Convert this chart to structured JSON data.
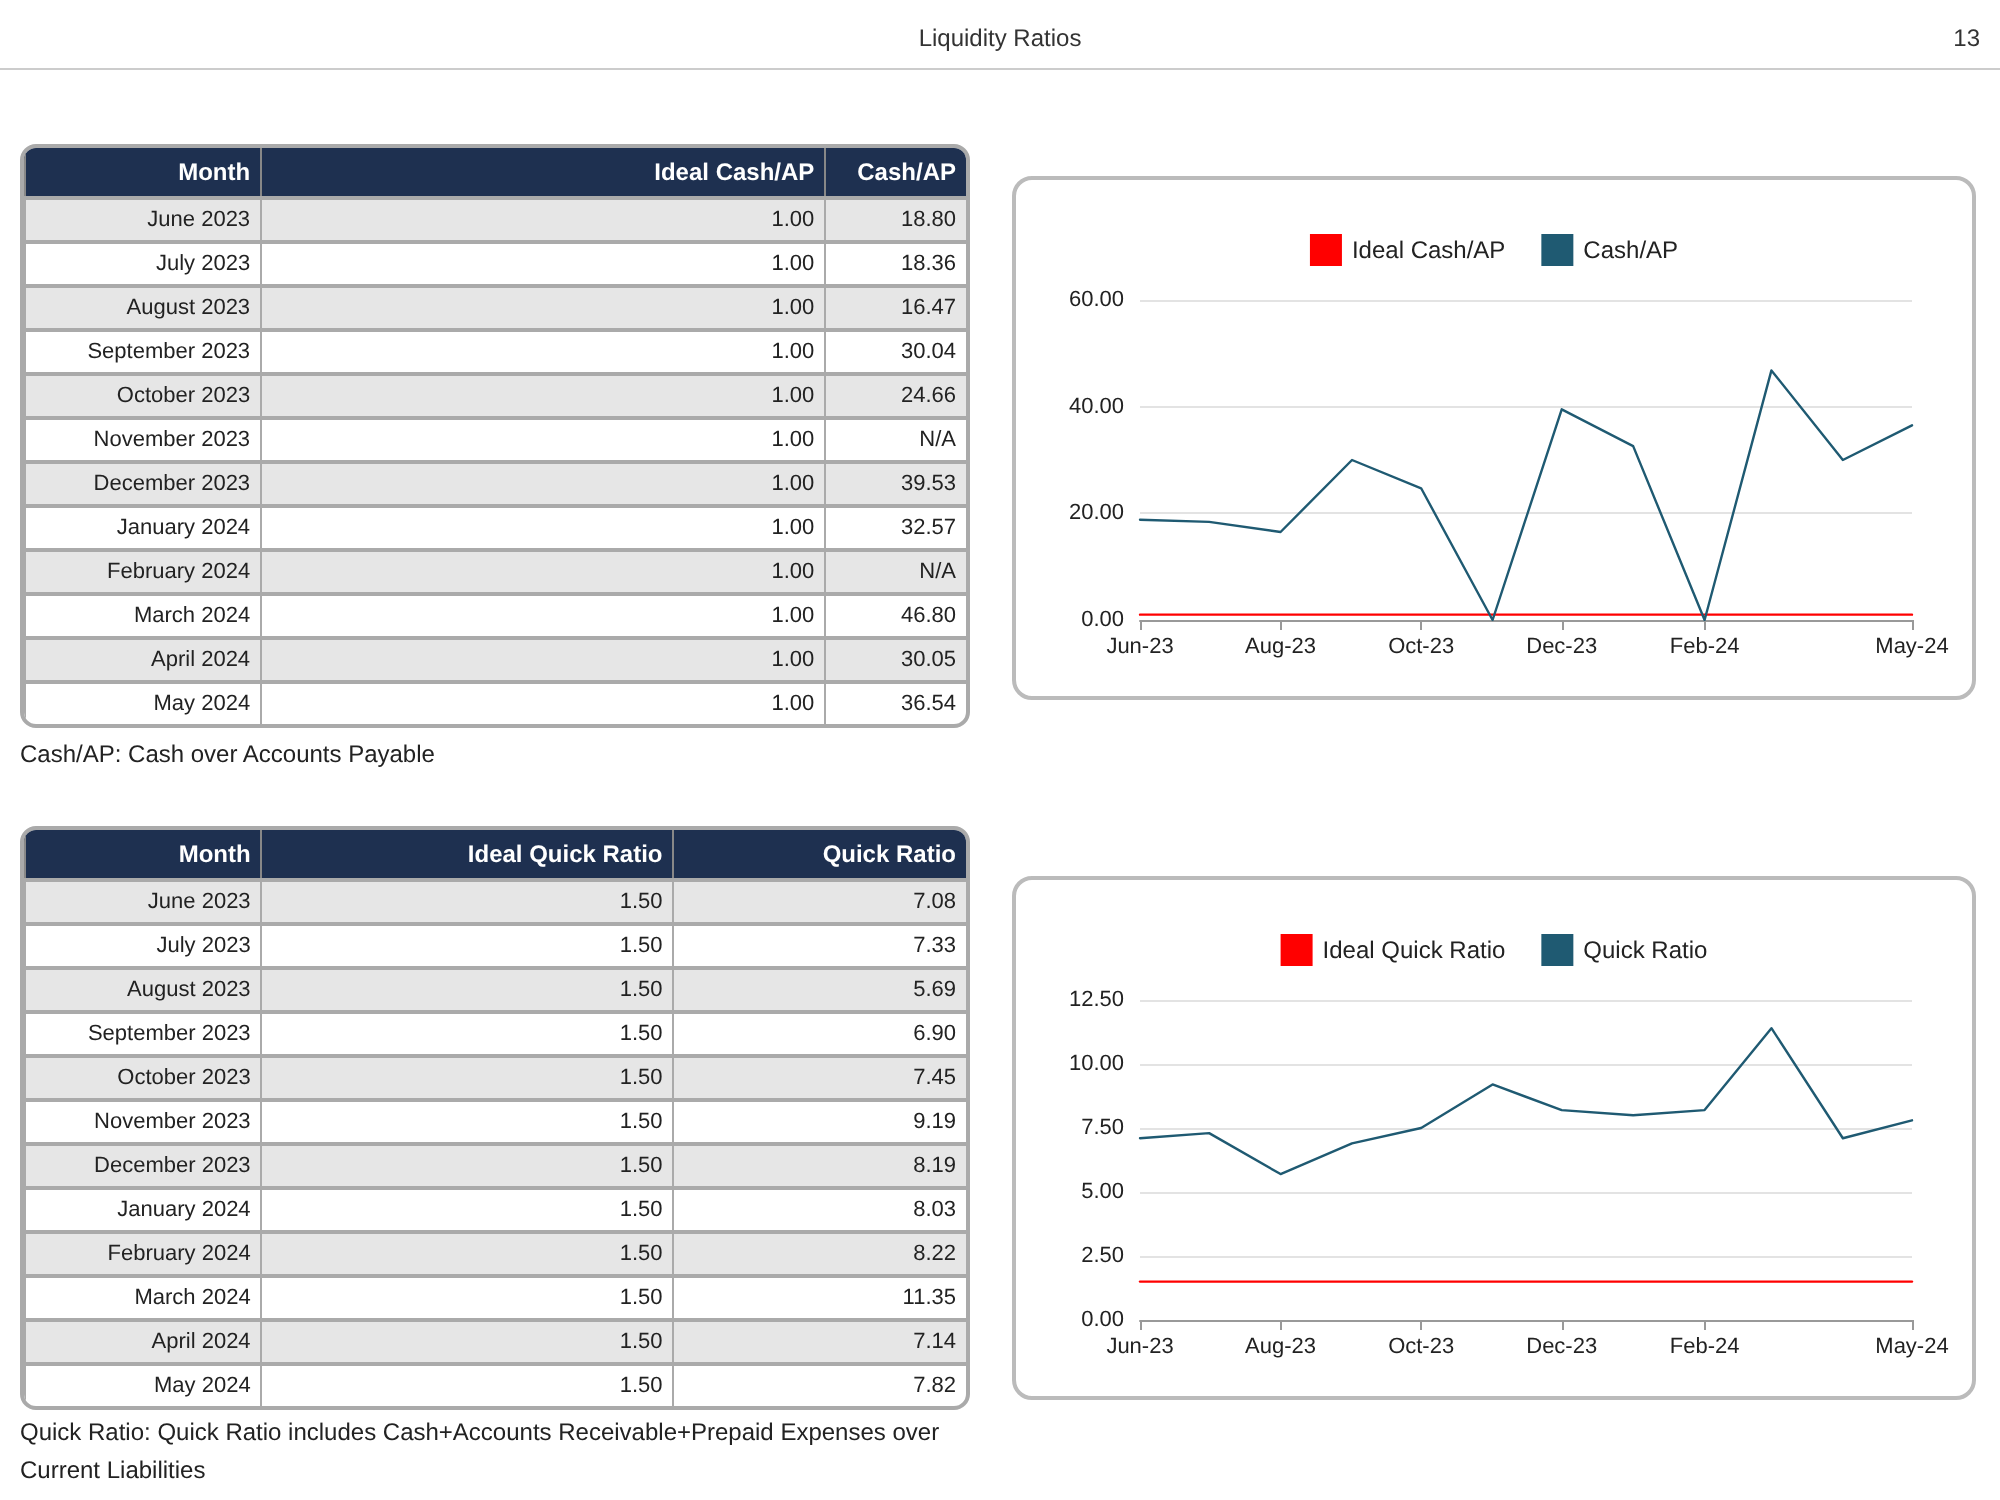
{
  "chart_data": [
    {
      "type": "other",
      "title": "Liquidity Ratios",
      "xlabel": "Month",
      "annotations": [
        "13",
        "Cash/AP: Cash over Accounts Payable"
      ],
      "categories": [
        "June 2023",
        "July 2023",
        "August 2023",
        "September 2023",
        "October 2023",
        "November 2023",
        "December 2023",
        "January 2024",
        "February 2024",
        "March 2024",
        "April 2024",
        "May 2024"
      ],
      "series": [
        {
          "name": "Ideal Cash/AP",
          "values": [
            1,
            1,
            1,
            1,
            1,
            1,
            1,
            1,
            1,
            1,
            1,
            1
          ],
          "value_labels": [
            "1.00",
            "1.00",
            "1.00",
            "1.00",
            "1.00",
            "1.00",
            "1.00",
            "1.00",
            "1.00",
            "1.00",
            "1.00",
            "1.00"
          ]
        },
        {
          "name": "Cash/AP",
          "values": [
            18.8,
            18.36,
            16.47,
            30.04,
            24.66,
            null,
            39.53,
            32.57,
            null,
            46.8,
            30.05,
            36.54
          ],
          "value_labels": [
            "18.80",
            "18.36",
            "16.47",
            "30.04",
            "24.66",
            "N/A",
            "39.53",
            "32.57",
            "N/A",
            "46.80",
            "30.05",
            "36.54"
          ]
        }
      ]
    },
    {
      "type": "line",
      "x": [
        "2023-06",
        "2023-07",
        "2023-08",
        "2023-09",
        "2023-10",
        "2023-11",
        "2023-12",
        "2024-01",
        "2024-02",
        "2024-03",
        "2024-04",
        "2024-05"
      ],
      "xlim": [
        "2023-06",
        "2024-05"
      ],
      "xticks": [
        {
          "value": "2023-06",
          "label": "Jun-23"
        },
        {
          "value": "2023-08",
          "label": "Aug-23"
        },
        {
          "value": "2023-10",
          "label": "Oct-23"
        },
        {
          "value": "2023-12",
          "label": "Dec-23"
        },
        {
          "value": "2024-02",
          "label": "Feb-24"
        },
        {
          "value": "2024-05",
          "label": "May-24"
        }
      ],
      "ylim": [
        0,
        60
      ],
      "yticks": [
        {
          "value": 0,
          "label": "0.00"
        },
        {
          "value": 20,
          "label": "20.00"
        },
        {
          "value": 40,
          "label": "40.00"
        },
        {
          "value": 60,
          "label": "60.00"
        }
      ],
      "series": [
        {
          "name": "Ideal Cash/AP",
          "color": "#ff0000",
          "values": [
            1,
            1,
            1,
            1,
            1,
            1,
            1,
            1,
            1,
            1,
            1,
            1
          ]
        },
        {
          "name": "Cash/AP",
          "color": "#1f5a72",
          "values": [
            18.8,
            18.4,
            16.5,
            30,
            24.7,
            0,
            39.5,
            32.6,
            0,
            46.8,
            30,
            36.5
          ]
        }
      ],
      "grid": "y",
      "legend": "top",
      "marker": "none",
      "line_style": "solid"
    },
    {
      "type": "other",
      "xlabel": "Month",
      "annotations": [
        "Quick Ratio: Quick Ratio includes Cash+Accounts Receivable+Prepaid Expenses over Current Liabilities"
      ],
      "categories": [
        "June 2023",
        "July 2023",
        "August 2023",
        "September 2023",
        "October 2023",
        "November 2023",
        "December 2023",
        "January 2024",
        "February 2024",
        "March 2024",
        "April 2024",
        "May 2024"
      ],
      "series": [
        {
          "name": "Ideal Quick Ratio",
          "values": [
            1.5,
            1.5,
            1.5,
            1.5,
            1.5,
            1.5,
            1.5,
            1.5,
            1.5,
            1.5,
            1.5,
            1.5
          ],
          "value_labels": [
            "1.50",
            "1.50",
            "1.50",
            "1.50",
            "1.50",
            "1.50",
            "1.50",
            "1.50",
            "1.50",
            "1.50",
            "1.50",
            "1.50"
          ]
        },
        {
          "name": "Quick Ratio",
          "values": [
            7.08,
            7.33,
            5.69,
            6.9,
            7.45,
            9.19,
            8.19,
            8.03,
            8.22,
            11.35,
            7.14,
            7.82
          ],
          "value_labels": [
            "7.08",
            "7.33",
            "5.69",
            "6.90",
            "7.45",
            "9.19",
            "8.19",
            "8.03",
            "8.22",
            "11.35",
            "7.14",
            "7.82"
          ]
        }
      ]
    },
    {
      "type": "line",
      "x": [
        "2023-06",
        "2023-07",
        "2023-08",
        "2023-09",
        "2023-10",
        "2023-11",
        "2023-12",
        "2024-01",
        "2024-02",
        "2024-03",
        "2024-04",
        "2024-05"
      ],
      "xlim": [
        "2023-06",
        "2024-05"
      ],
      "xticks": [
        {
          "value": "2023-06",
          "label": "Jun-23"
        },
        {
          "value": "2023-08",
          "label": "Aug-23"
        },
        {
          "value": "2023-10",
          "label": "Oct-23"
        },
        {
          "value": "2023-12",
          "label": "Dec-23"
        },
        {
          "value": "2024-02",
          "label": "Feb-24"
        },
        {
          "value": "2024-05",
          "label": "May-24"
        }
      ],
      "ylim": [
        0,
        12.5
      ],
      "yticks": [
        {
          "value": 0,
          "label": "0.00"
        },
        {
          "value": 2.5,
          "label": "2.50"
        },
        {
          "value": 5,
          "label": "5.00"
        },
        {
          "value": 7.5,
          "label": "7.50"
        },
        {
          "value": 10,
          "label": "10.00"
        },
        {
          "value": 12.5,
          "label": "12.50"
        }
      ],
      "series": [
        {
          "name": "Ideal Quick Ratio",
          "color": "#ff0000",
          "values": [
            1.5,
            1.5,
            1.5,
            1.5,
            1.5,
            1.5,
            1.5,
            1.5,
            1.5,
            1.5,
            1.5,
            1.5
          ]
        },
        {
          "name": "Quick Ratio",
          "color": "#1f5a72",
          "values": [
            7.1,
            7.3,
            5.7,
            6.9,
            7.5,
            9.2,
            8.2,
            8,
            8.2,
            11.4,
            7.1,
            7.8
          ]
        }
      ],
      "grid": "y",
      "legend": "top",
      "marker": "none",
      "line_style": "solid"
    }
  ]
}
